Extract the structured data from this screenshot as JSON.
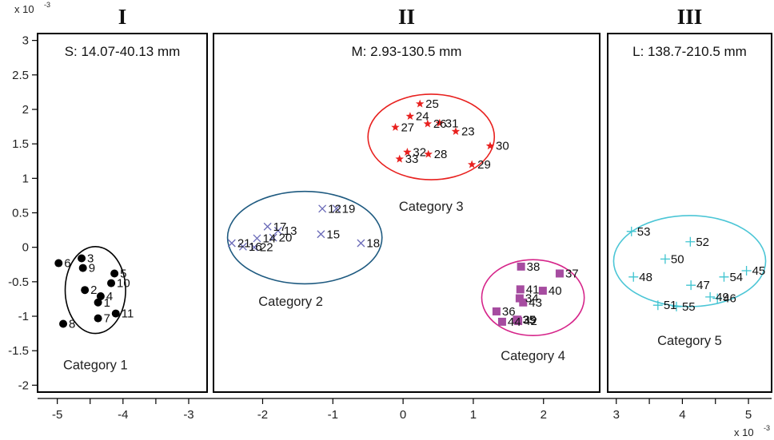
{
  "chart_data": {
    "type": "scatter",
    "x_scale_label": "x 10",
    "y_scale_label": "x 10",
    "scale_exponent": "-3",
    "panels": [
      {
        "roman": "I",
        "range_label": "S: 14.07-40.13 mm",
        "xlim": [
          -5.3,
          -2.72
        ],
        "x_ticks": [
          -5,
          -4.5,
          -4,
          -3.5,
          -3
        ],
        "x_tick_labels": [
          "-5",
          "",
          "-4",
          "",
          "-3"
        ]
      },
      {
        "roman": "II",
        "range_label": "M: 2.93-130.5 mm",
        "xlim": [
          -2.7,
          2.8
        ],
        "x_ticks": [
          -2,
          -1,
          0,
          1,
          2
        ],
        "x_tick_labels": [
          "-2",
          "-1",
          "0",
          "1",
          "2"
        ]
      },
      {
        "roman": "III",
        "range_label": "L: 138.7-210.5 mm",
        "xlim": [
          2.87,
          5.35
        ],
        "x_ticks": [
          3,
          3.5,
          4,
          4.5,
          5
        ],
        "x_tick_labels": [
          "3",
          "",
          "4",
          "",
          "5"
        ]
      }
    ],
    "ylim": [
      -2.1,
      3.1
    ],
    "y_ticks": [
      3,
      2.5,
      2,
      1.5,
      1,
      0.5,
      0,
      -0.5,
      -1,
      -1.5,
      -2
    ],
    "y_tick_labels": [
      "3",
      "2.5",
      "2",
      "1.5",
      "1",
      "0.5",
      "0",
      "-0.5",
      "-1",
      "-1.5",
      "-2"
    ],
    "categories": [
      {
        "name": "Category 1",
        "color": "#000000",
        "marker": "dot",
        "panel": 0,
        "ellipse": {
          "cx": -4.42,
          "cy": -0.62,
          "rx": 0.46,
          "ry": 0.63
        },
        "label_pos": [
          -4.42,
          -1.7
        ],
        "points": [
          {
            "id": "1",
            "x": -4.38,
            "y": -0.8
          },
          {
            "id": "2",
            "x": -4.58,
            "y": -0.62
          },
          {
            "id": "3",
            "x": -4.63,
            "y": -0.16
          },
          {
            "id": "4",
            "x": -4.34,
            "y": -0.71
          },
          {
            "id": "5",
            "x": -4.13,
            "y": -0.38
          },
          {
            "id": "6",
            "x": -4.98,
            "y": -0.23
          },
          {
            "id": "7",
            "x": -4.38,
            "y": -1.03
          },
          {
            "id": "8",
            "x": -4.91,
            "y": -1.11
          },
          {
            "id": "9",
            "x": -4.61,
            "y": -0.3
          },
          {
            "id": "10",
            "x": -4.18,
            "y": -0.52
          },
          {
            "id": "11",
            "x": -4.11,
            "y": -0.96
          }
        ]
      },
      {
        "name": "Category 2",
        "color": "#6a6ab8",
        "marker": "x",
        "panel": 1,
        "ellipse": {
          "cx": -1.4,
          "cy": 0.14,
          "rx": 1.1,
          "ry": 0.67
        },
        "label_pos": [
          -1.6,
          -0.78
        ],
        "points": [
          {
            "id": "12",
            "x": -1.15,
            "y": 0.56
          },
          {
            "id": "13",
            "x": -1.78,
            "y": 0.24
          },
          {
            "id": "14",
            "x": -2.08,
            "y": 0.13
          },
          {
            "id": "15",
            "x": -1.17,
            "y": 0.19
          },
          {
            "id": "16",
            "x": -2.28,
            "y": 0.01
          },
          {
            "id": "17",
            "x": -1.93,
            "y": 0.3
          },
          {
            "id": "18",
            "x": -0.6,
            "y": 0.06
          },
          {
            "id": "19",
            "x": -0.95,
            "y": 0.56
          },
          {
            "id": "20",
            "x": -1.85,
            "y": 0.14
          },
          {
            "id": "21",
            "x": -2.44,
            "y": 0.06
          },
          {
            "id": "22",
            "x": -2.12,
            "y": 0.0
          }
        ]
      },
      {
        "name": "Category 3",
        "color": "#e8211f",
        "marker": "star",
        "panel": 1,
        "ellipse": {
          "cx": 0.4,
          "cy": 1.6,
          "rx": 0.9,
          "ry": 0.62
        },
        "label_pos": [
          0.4,
          0.6
        ],
        "points": [
          {
            "id": "23",
            "x": 0.75,
            "y": 1.68
          },
          {
            "id": "24",
            "x": 0.1,
            "y": 1.9
          },
          {
            "id": "25",
            "x": 0.24,
            "y": 2.08
          },
          {
            "id": "26",
            "x": 0.35,
            "y": 1.79
          },
          {
            "id": "27",
            "x": -0.11,
            "y": 1.74
          },
          {
            "id": "28",
            "x": 0.36,
            "y": 1.35
          },
          {
            "id": "29",
            "x": 0.98,
            "y": 1.2
          },
          {
            "id": "30",
            "x": 1.24,
            "y": 1.47
          },
          {
            "id": "31",
            "x": 0.52,
            "y": 1.8
          },
          {
            "id": "32",
            "x": 0.06,
            "y": 1.38
          },
          {
            "id": "33",
            "x": -0.05,
            "y": 1.28
          }
        ]
      },
      {
        "name": "Category 4",
        "color": "#a64ca0",
        "marker": "square",
        "panel": 1,
        "ellipse": {
          "cx": 1.85,
          "cy": -0.73,
          "rx": 0.73,
          "ry": 0.55
        },
        "label_pos": [
          1.85,
          -1.57
        ],
        "points": [
          {
            "id": "34",
            "x": 1.66,
            "y": -0.74
          },
          {
            "id": "35",
            "x": 1.62,
            "y": -1.05
          },
          {
            "id": "36",
            "x": 1.33,
            "y": -0.93
          },
          {
            "id": "37",
            "x": 2.23,
            "y": -0.38
          },
          {
            "id": "38",
            "x": 1.68,
            "y": -0.28
          },
          {
            "id": "39",
            "x": 1.63,
            "y": -1.05
          },
          {
            "id": "40",
            "x": 1.99,
            "y": -0.63
          },
          {
            "id": "41",
            "x": 1.67,
            "y": -0.61
          },
          {
            "id": "42",
            "x": 1.64,
            "y": -1.07
          },
          {
            "id": "43",
            "x": 1.71,
            "y": -0.8
          },
          {
            "id": "44",
            "x": 1.41,
            "y": -1.08
          }
        ]
      },
      {
        "name": "Category 5",
        "color": "#3fc4d0",
        "marker": "plus",
        "panel": 2,
        "ellipse": {
          "cx": 4.11,
          "cy": -0.2,
          "rx": 1.15,
          "ry": 0.66
        },
        "label_pos": [
          4.11,
          -1.35
        ],
        "points": [
          {
            "id": "45",
            "x": 4.97,
            "y": -0.34
          },
          {
            "id": "46",
            "x": 4.53,
            "y": -0.74
          },
          {
            "id": "47",
            "x": 4.13,
            "y": -0.55
          },
          {
            "id": "48",
            "x": 3.26,
            "y": -0.43
          },
          {
            "id": "49",
            "x": 4.42,
            "y": -0.72
          },
          {
            "id": "50",
            "x": 3.74,
            "y": -0.17
          },
          {
            "id": "51",
            "x": 3.63,
            "y": -0.84
          },
          {
            "id": "52",
            "x": 4.12,
            "y": 0.08
          },
          {
            "id": "53",
            "x": 3.23,
            "y": 0.23
          },
          {
            "id": "54",
            "x": 4.63,
            "y": -0.43
          },
          {
            "id": "55",
            "x": 3.91,
            "y": -0.86
          }
        ]
      }
    ]
  }
}
